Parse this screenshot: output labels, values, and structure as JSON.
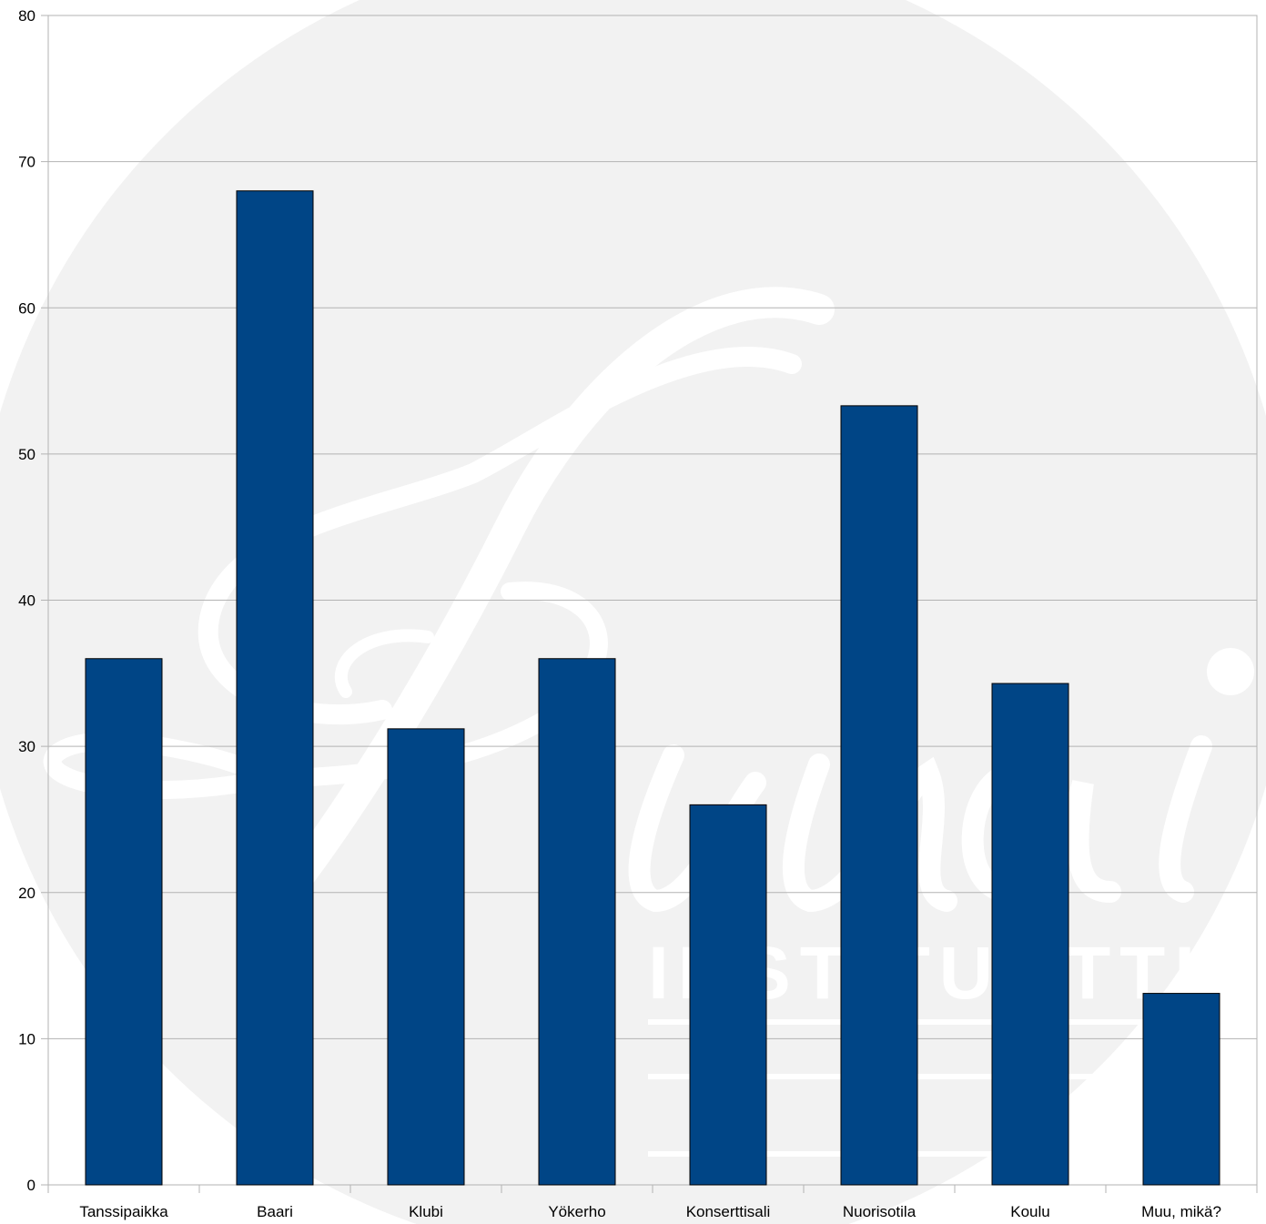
{
  "watermark": {
    "text": "INSTITUUTTI",
    "logo_label": "Sibelius-logo-watermark"
  },
  "colors": {
    "bar_fill": "#004586",
    "bar_stroke": "#000000",
    "grid": "#b3b3b3",
    "watermark_circle": "#f2f2f2",
    "watermark_ink": "#ffffff"
  },
  "chart_data": {
    "type": "bar",
    "title": "",
    "xlabel": "",
    "ylabel": "",
    "categories": [
      "Tanssipaikka",
      "Baari",
      "Klubi",
      "Yökerho",
      "Konserttisali",
      "Nuorisotila",
      "Koulu",
      "Muu, mikä?"
    ],
    "values": [
      36,
      68,
      31.2,
      36,
      26,
      53.3,
      34.3,
      13.1
    ],
    "ylim": [
      0,
      80
    ],
    "yticks": [
      0,
      10,
      20,
      30,
      40,
      50,
      60,
      70,
      80
    ],
    "grid": true,
    "legend": "none"
  }
}
